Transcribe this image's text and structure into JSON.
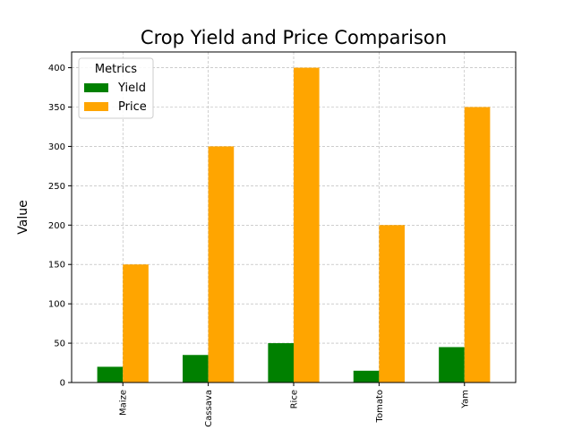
{
  "chart_data": {
    "type": "bar",
    "title": "Crop Yield and Price Comparison",
    "xlabel": "",
    "ylabel": "Value",
    "categories": [
      "Maize",
      "Cassava",
      "Rice",
      "Tomato",
      "Yam"
    ],
    "series": [
      {
        "name": "Yield",
        "color": "#008000",
        "values": [
          20,
          35,
          50,
          15,
          45
        ]
      },
      {
        "name": "Price",
        "color": "#FFA500",
        "values": [
          150,
          300,
          400,
          200,
          350
        ]
      }
    ],
    "ylim": [
      0,
      420
    ],
    "yticks": [
      0,
      50,
      100,
      150,
      200,
      250,
      300,
      350,
      400
    ],
    "grid": true,
    "legend": {
      "title": "Metrics",
      "placement": "top-left"
    },
    "xtick_rotation": 90
  }
}
